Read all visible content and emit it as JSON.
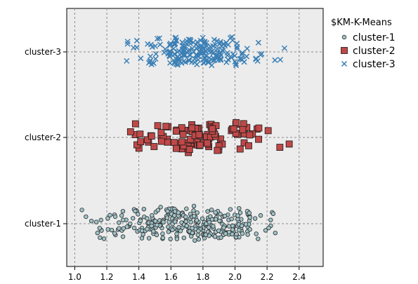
{
  "chart_data": {
    "type": "scatter",
    "title": "",
    "xlabel": "",
    "ylabel": "",
    "xlim": [
      0.95,
      2.55
    ],
    "x_ticks": [
      "1.0",
      "1.2",
      "1.4",
      "1.6",
      "1.8",
      "2.0",
      "2.2",
      "2.4"
    ],
    "x_tick_values": [
      1.0,
      1.2,
      1.4,
      1.6,
      1.8,
      2.0,
      2.2,
      2.4
    ],
    "categories": [
      "cluster-1",
      "cluster-2",
      "cluster-3"
    ],
    "y_tick_labels": [
      "cluster-3",
      "cluster-2",
      "cluster-1"
    ],
    "grid": true,
    "legend": {
      "title": "$KM-K-Means",
      "placement": "right",
      "entries": [
        "cluster-1",
        "cluster-2",
        "cluster-3"
      ]
    },
    "series": [
      {
        "name": "cluster-1",
        "marker": "circle",
        "color": "#9fc3c8",
        "x_range": [
          1.02,
          2.42
        ],
        "approx_count": 300
      },
      {
        "name": "cluster-2",
        "marker": "square",
        "color": "#c04848",
        "x_range": [
          1.22,
          2.36
        ],
        "approx_count": 100
      },
      {
        "name": "cluster-3",
        "marker": "x",
        "color": "#3a7fb5",
        "x_range": [
          1.25,
          2.33
        ],
        "approx_count": 200
      }
    ]
  },
  "colors": {
    "plot_background": "#ececec",
    "grid": "#8c8c8c",
    "cluster_1_fill": "#9fc3c8",
    "cluster_2_fill": "#c04848",
    "cluster_3_stroke": "#3a7fb5"
  }
}
